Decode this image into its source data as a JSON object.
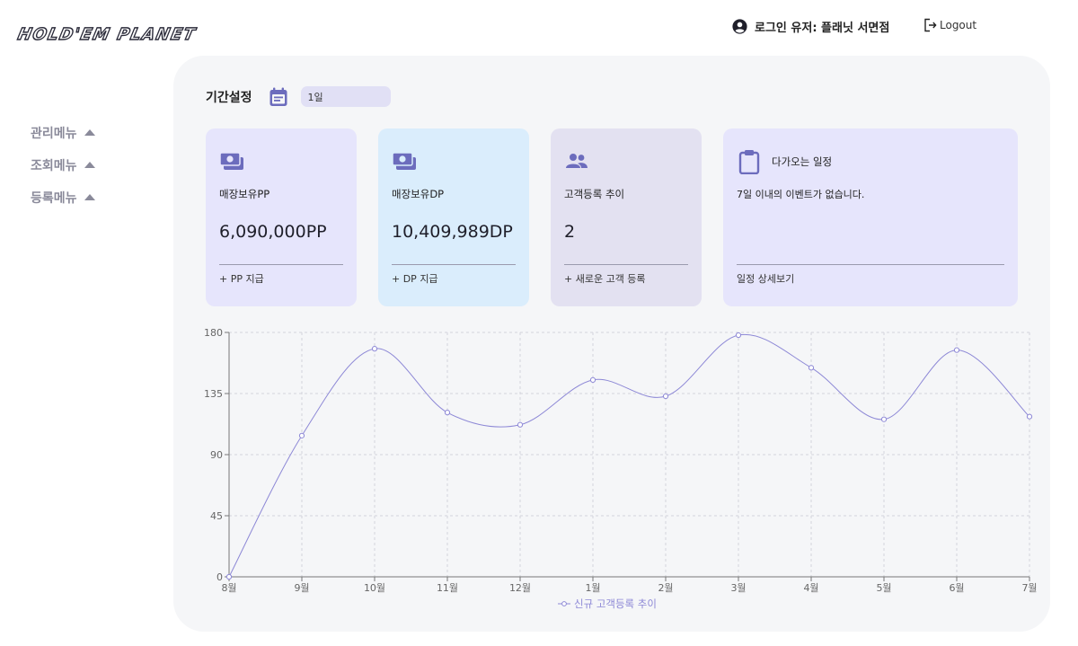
{
  "brand": {
    "logo_text": "HOLD'EM PLANET"
  },
  "header": {
    "user_label": "로그인 유저: 플래닛 서면점",
    "logout_label": "Logout"
  },
  "sidebar": {
    "items": [
      {
        "label": "관리메뉴"
      },
      {
        "label": "조회메뉴"
      },
      {
        "label": "등록메뉴"
      }
    ]
  },
  "period": {
    "label": "기간설정",
    "value": "1일"
  },
  "cards": [
    {
      "title": "매장보유PP",
      "value": "6,090,000PP",
      "action": "+ PP 지급",
      "icon": "money-icon",
      "bg": "#e6e5fc"
    },
    {
      "title": "매장보유DP",
      "value": "10,409,989DP",
      "action": "+ DP 지급",
      "icon": "money-icon",
      "bg": "#daedfc"
    },
    {
      "title": "고객등록 추이",
      "value": "2",
      "action": "+ 새로운 고객 등록",
      "icon": "users-icon",
      "bg": "#e3e1f1"
    },
    {
      "title": "다가오는 일정",
      "value": "7일 이내의 이벤트가 없습니다.",
      "action": "일정 상세보기",
      "icon": "clipboard-icon",
      "bg": "#e6e5fc"
    }
  ],
  "colors": {
    "accent": "#6c6cbd",
    "line": "#8d88d6"
  },
  "chart_data": {
    "type": "line",
    "categories": [
      "8월",
      "9월",
      "10월",
      "11월",
      "12월",
      "1월",
      "2월",
      "3월",
      "4월",
      "5월",
      "6월",
      "7월"
    ],
    "series": [
      {
        "name": "신규 고객등록 추이",
        "values": [
          0,
          104,
          168,
          121,
          112,
          145,
          133,
          178,
          154,
          116,
          167,
          118
        ]
      }
    ],
    "ylim": [
      0,
      180
    ],
    "yticks": [
      0,
      45,
      90,
      135,
      180
    ],
    "grid": true,
    "legend": "bottom"
  }
}
